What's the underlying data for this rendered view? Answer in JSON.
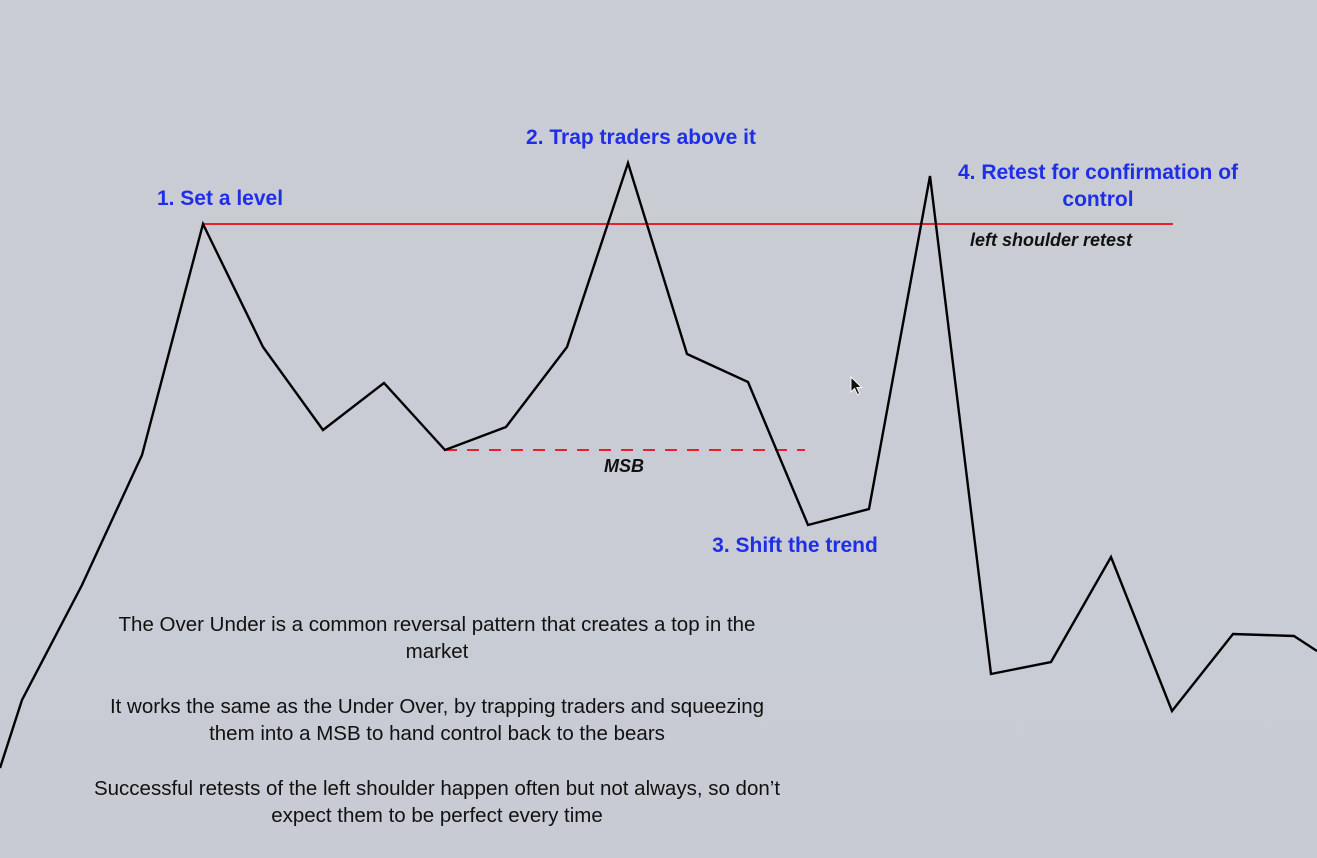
{
  "labels": {
    "step1": "1. Set a level",
    "step2": "2. Trap traders above it",
    "step3": "3. Shift the trend",
    "step4": "4. Retest for confirmation of control",
    "msb": "MSB",
    "left_shoulder_retest": "left shoulder retest"
  },
  "notes": [
    "The Over Under is a common reversal pattern that creates a top in the market",
    "It works the same as the Under Over, by trapping traders and squeezing them into a MSB to hand control back to the bears",
    "Successful retests of the left shoulder happen often but not always, so don’t expect them to be perfect every time"
  ],
  "icons": {
    "cursor": "mouse-pointer-icon"
  },
  "colors": {
    "background": "#c9ccd4",
    "label": "#1f2fe6",
    "level_line": "#e8202a",
    "msb_line": "#e8202a",
    "price_line": "#000000"
  }
}
